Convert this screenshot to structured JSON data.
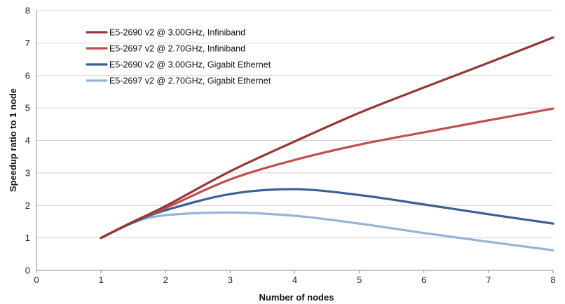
{
  "chart_data": {
    "type": "line",
    "xlabel": "Number of nodes",
    "ylabel": "Speedup ratio to 1 node",
    "xlim": [
      0,
      8
    ],
    "ylim": [
      0,
      8
    ],
    "x_ticks": [
      0,
      1,
      2,
      3,
      4,
      5,
      6,
      7,
      8
    ],
    "y_ticks": [
      0,
      1,
      2,
      3,
      4,
      5,
      6,
      7,
      8
    ],
    "grid": "horizontal",
    "legend_position": "top-left",
    "series": [
      {
        "name": "E5-2690 v2 @ 3.00GHz, Infiniband",
        "color": "#953735",
        "points": [
          [
            1,
            1
          ],
          [
            1.5,
            1.5
          ],
          [
            2,
            1.98
          ],
          [
            3,
            3.05
          ],
          [
            4,
            3.97
          ],
          [
            5,
            4.85
          ],
          [
            6,
            5.63
          ],
          [
            7,
            6.39
          ],
          [
            8,
            7.17
          ]
        ]
      },
      {
        "name": "E5-2697 v2 @ 2.70GHz, Infiniband",
        "color": "#c0504d",
        "points": [
          [
            1,
            1
          ],
          [
            1.5,
            1.5
          ],
          [
            2,
            1.92
          ],
          [
            3,
            2.8
          ],
          [
            4,
            3.4
          ],
          [
            5,
            3.87
          ],
          [
            6,
            4.25
          ],
          [
            7,
            4.62
          ],
          [
            8,
            4.98
          ]
        ]
      },
      {
        "name": "E5-2690 v2 @ 3.00GHz, Gigabit Ethernet",
        "color": "#3a5f91",
        "points": [
          [
            1,
            1
          ],
          [
            1.5,
            1.48
          ],
          [
            2,
            1.85
          ],
          [
            3,
            2.35
          ],
          [
            4,
            2.5
          ],
          [
            5,
            2.32
          ],
          [
            6,
            2.03
          ],
          [
            7,
            1.73
          ],
          [
            8,
            1.44
          ]
        ]
      },
      {
        "name": "E5-2697 v2 @ 2.70GHz, Gigabit Ethernet",
        "color": "#95b3d7",
        "points": [
          [
            1,
            1
          ],
          [
            1.5,
            1.47
          ],
          [
            2,
            1.7
          ],
          [
            3,
            1.78
          ],
          [
            4,
            1.68
          ],
          [
            5,
            1.44
          ],
          [
            6,
            1.15
          ],
          [
            7,
            0.88
          ],
          [
            8,
            0.62
          ]
        ]
      }
    ]
  }
}
